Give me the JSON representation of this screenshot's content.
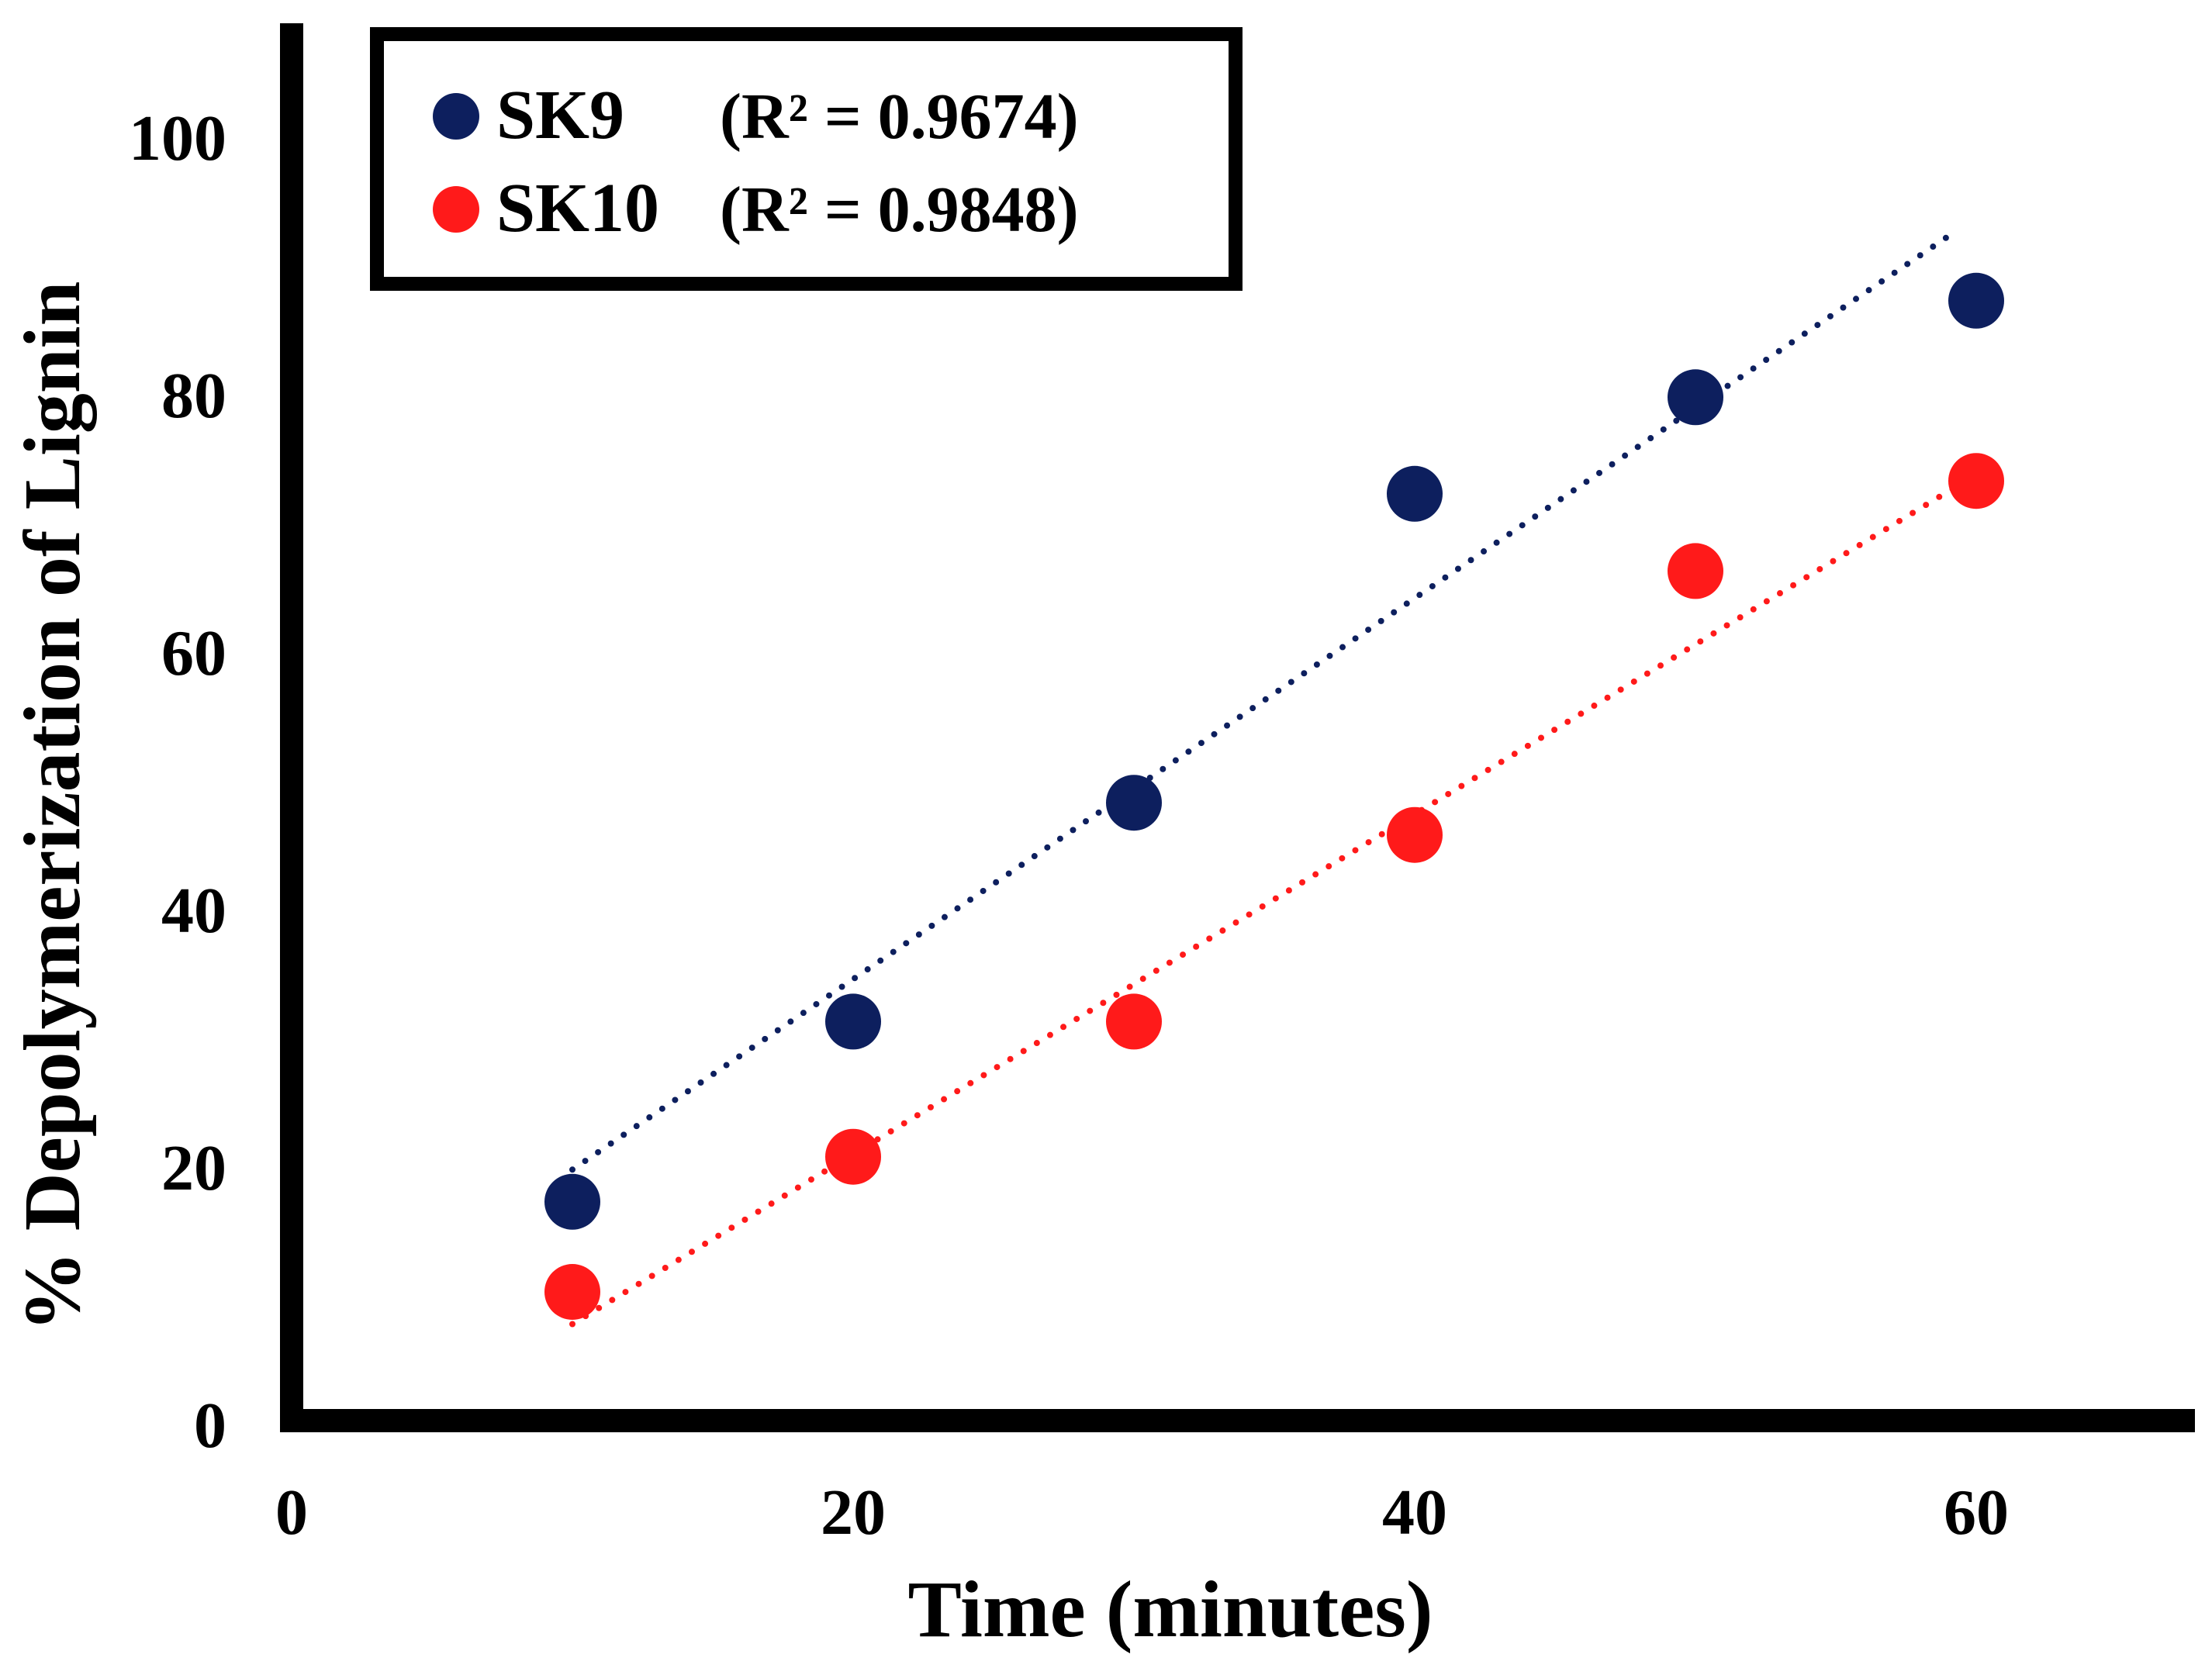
{
  "chart_data": {
    "type": "scatter",
    "xlabel": "Time (minutes)",
    "ylabel": "% Depolymerization of Lignin",
    "xlim": [
      0,
      68
    ],
    "ylim": [
      0,
      108
    ],
    "x_ticks": [
      0,
      20,
      40,
      60
    ],
    "y_ticks": [
      0,
      20,
      40,
      60,
      80,
      100
    ],
    "legend_position": "top-left",
    "series": [
      {
        "name": "SK9",
        "r2_label": "(R² = 0.9674)",
        "color": "#0d1f5e",
        "x": [
          10,
          20,
          30,
          40,
          50,
          60
        ],
        "values": [
          17,
          31,
          48,
          72,
          79.5,
          87
        ],
        "trendline": {
          "style": "dotted",
          "x": [
            10,
            59
          ],
          "y": [
            19.5,
            92
          ]
        }
      },
      {
        "name": "SK10",
        "r2_label": "(R² = 0.9848)",
        "color": "#ff1a1a",
        "x": [
          10,
          20,
          30,
          40,
          50,
          60
        ],
        "values": [
          10,
          20.5,
          31,
          45.5,
          66,
          73
        ],
        "trendline": {
          "style": "dotted",
          "x": [
            10,
            60
          ],
          "y": [
            7.5,
            73.5
          ]
        }
      }
    ]
  }
}
